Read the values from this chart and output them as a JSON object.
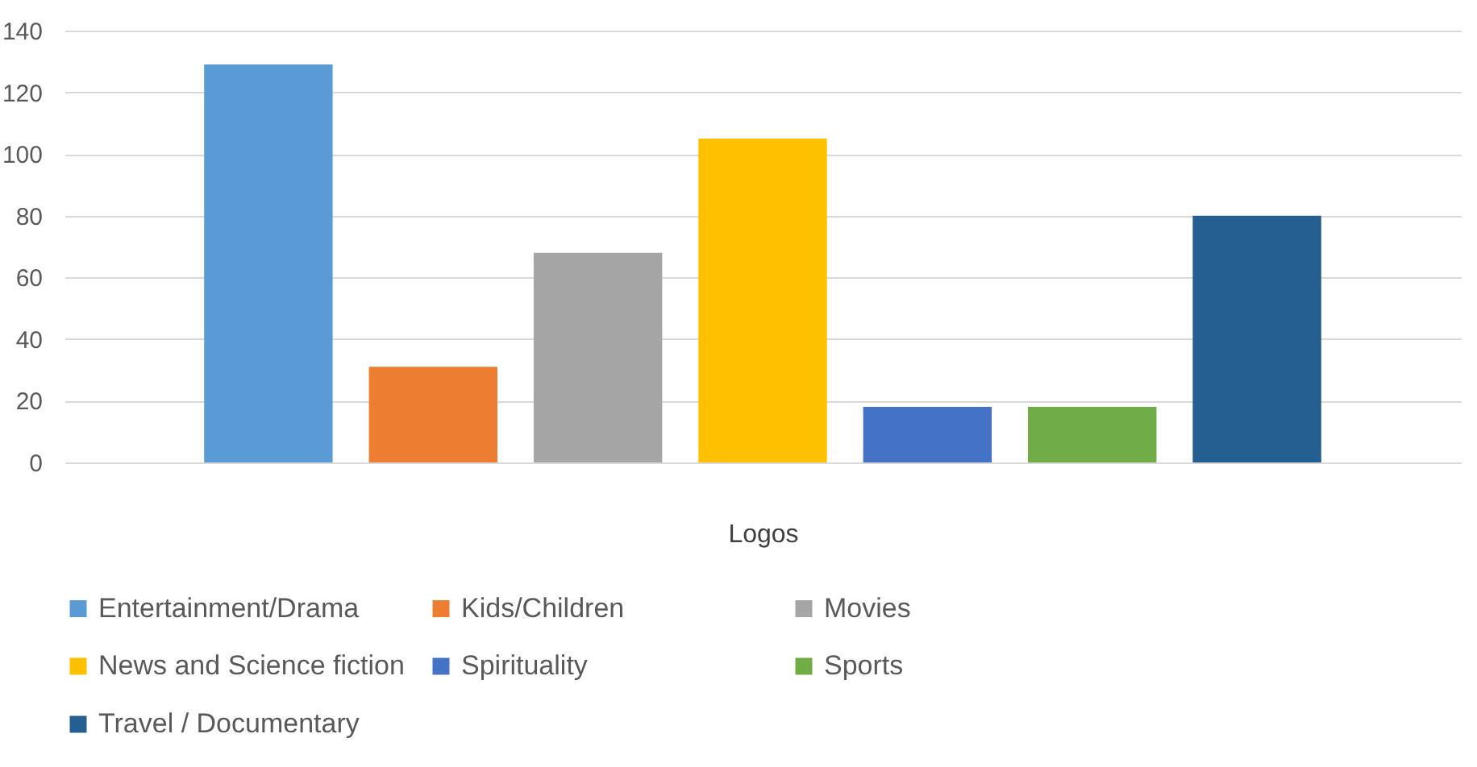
{
  "chart_data": {
    "type": "bar",
    "xlabel": "Logos",
    "categories": [
      null
    ],
    "series": [
      {
        "name": "Entertainment/Drama",
        "color": "#5b9bd5",
        "values": [
          129
        ]
      },
      {
        "name": "Kids/Children",
        "color": "#ed7d31",
        "values": [
          31
        ]
      },
      {
        "name": "Movies",
        "color": "#a5a5a5",
        "values": [
          68
        ]
      },
      {
        "name": "News and Science fiction",
        "color": "#ffc000",
        "values": [
          105
        ]
      },
      {
        "name": "Spirituality",
        "color": "#4472c4",
        "values": [
          18
        ]
      },
      {
        "name": "Sports",
        "color": "#70ad47",
        "values": [
          18
        ]
      },
      {
        "name": "Travel / Documentary",
        "color": "#255e91",
        "values": [
          80
        ]
      }
    ],
    "ylim": [
      0,
      140
    ],
    "yticks": [
      0,
      20,
      40,
      60,
      80,
      100,
      120,
      140
    ],
    "grid": "y",
    "legend": "bottom"
  }
}
